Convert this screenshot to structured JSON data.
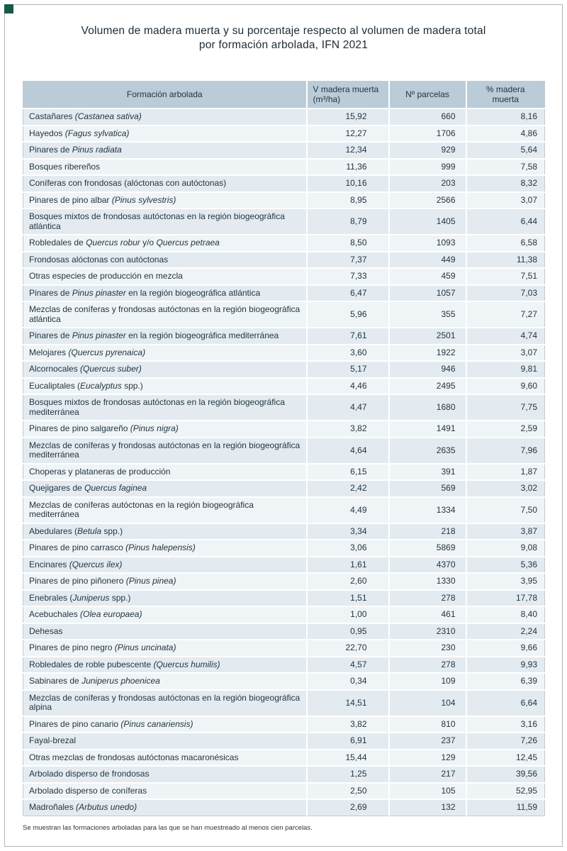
{
  "colors": {
    "header_bg": "#b9ccd8",
    "row_odd": "#e3ebf1",
    "row_even": "#eff4f7",
    "text": "#24343f",
    "title": "#1b2b36",
    "corner": "#17594a",
    "frame": "#b0b5b8"
  },
  "chart_data": {
    "type": "table",
    "title": "Volumen de madera muerta y su porcentaje respecto al volumen de madera total por formación arbolada, IFN 2021",
    "title_lines": [
      "Volumen de madera muerta y su porcentaje respecto al volumen de madera total",
      "por formación arbolada, IFN 2021"
    ],
    "columns": [
      "Formación arbolada",
      "V madera muerta (m³/ha)",
      "Nº parcelas",
      "% madera muerta"
    ],
    "rows": [
      {
        "formacion": [
          [
            "Castañares ",
            0
          ],
          [
            "(Castanea sativa)",
            1
          ]
        ],
        "v_madera_muerta": "15,92",
        "n_parcelas": "660",
        "pct_madera_muerta": "8,16"
      },
      {
        "formacion": [
          [
            "Hayedos ",
            0
          ],
          [
            "(Fagus sylvatica)",
            1
          ]
        ],
        "v_madera_muerta": "12,27",
        "n_parcelas": "1706",
        "pct_madera_muerta": "4,86"
      },
      {
        "formacion": [
          [
            "Pinares de ",
            0
          ],
          [
            "Pinus radiata",
            1
          ]
        ],
        "v_madera_muerta": "12,34",
        "n_parcelas": "929",
        "pct_madera_muerta": "5,64"
      },
      {
        "formacion": [
          [
            "Bosques ribereños",
            0
          ]
        ],
        "v_madera_muerta": "11,36",
        "n_parcelas": "999",
        "pct_madera_muerta": "7,58"
      },
      {
        "formacion": [
          [
            "Coníferas con frondosas (alóctonas con autóctonas)",
            0
          ]
        ],
        "v_madera_muerta": "10,16",
        "n_parcelas": "203",
        "pct_madera_muerta": "8,32"
      },
      {
        "formacion": [
          [
            "Pinares de pino albar ",
            0
          ],
          [
            "(Pinus sylvestris)",
            1
          ]
        ],
        "v_madera_muerta": "8,95",
        "n_parcelas": "2566",
        "pct_madera_muerta": "3,07"
      },
      {
        "formacion": [
          [
            "Bosques mixtos de frondosas autóctonas en la región biogeográfica atlántica",
            0
          ]
        ],
        "v_madera_muerta": "8,79",
        "n_parcelas": "1405",
        "pct_madera_muerta": "6,44"
      },
      {
        "formacion": [
          [
            "Robledales de ",
            0
          ],
          [
            "Quercus robur",
            1
          ],
          [
            " y/o ",
            0
          ],
          [
            "Quercus petraea",
            1
          ]
        ],
        "v_madera_muerta": "8,50",
        "n_parcelas": "1093",
        "pct_madera_muerta": "6,58"
      },
      {
        "formacion": [
          [
            "Frondosas alóctonas con autóctonas",
            0
          ]
        ],
        "v_madera_muerta": "7,37",
        "n_parcelas": "449",
        "pct_madera_muerta": "11,38"
      },
      {
        "formacion": [
          [
            "Otras especies de producción en mezcla",
            0
          ]
        ],
        "v_madera_muerta": "7,33",
        "n_parcelas": "459",
        "pct_madera_muerta": "7,51"
      },
      {
        "formacion": [
          [
            "Pinares de ",
            0
          ],
          [
            "Pinus pinaster",
            1
          ],
          [
            " en la región biogeográfica atlántica",
            0
          ]
        ],
        "v_madera_muerta": "6,47",
        "n_parcelas": "1057",
        "pct_madera_muerta": "7,03"
      },
      {
        "formacion": [
          [
            "Mezclas de coníferas y frondosas autóctonas en la región biogeográfica atlántica",
            0
          ]
        ],
        "v_madera_muerta": "5,96",
        "n_parcelas": "355",
        "pct_madera_muerta": "7,27"
      },
      {
        "formacion": [
          [
            "Pinares de ",
            0
          ],
          [
            "Pinus pinaster",
            1
          ],
          [
            " en la región biogeográfica mediterránea",
            0
          ]
        ],
        "v_madera_muerta": "7,61",
        "n_parcelas": "2501",
        "pct_madera_muerta": "4,74"
      },
      {
        "formacion": [
          [
            "Melojares ",
            0
          ],
          [
            "(Quercus pyrenaica)",
            1
          ]
        ],
        "v_madera_muerta": "3,60",
        "n_parcelas": "1922",
        "pct_madera_muerta": "3,07"
      },
      {
        "formacion": [
          [
            "Alcornocales ",
            0
          ],
          [
            "(Quercus suber)",
            1
          ]
        ],
        "v_madera_muerta": "5,17",
        "n_parcelas": "946",
        "pct_madera_muerta": "9,81"
      },
      {
        "formacion": [
          [
            "Eucaliptales (",
            0
          ],
          [
            "Eucalyptus",
            1
          ],
          [
            " spp.)",
            0
          ]
        ],
        "v_madera_muerta": "4,46",
        "n_parcelas": "2495",
        "pct_madera_muerta": "9,60"
      },
      {
        "formacion": [
          [
            "Bosques mixtos de frondosas autóctonas en la región biogeográfica mediterránea",
            0
          ]
        ],
        "v_madera_muerta": "4,47",
        "n_parcelas": "1680",
        "pct_madera_muerta": "7,75"
      },
      {
        "formacion": [
          [
            "Pinares de pino salgareño ",
            0
          ],
          [
            "(Pinus nigra)",
            1
          ]
        ],
        "v_madera_muerta": "3,82",
        "n_parcelas": "1491",
        "pct_madera_muerta": "2,59"
      },
      {
        "formacion": [
          [
            "Mezclas de coníferas y frondosas autóctonas en la región biogeográfica mediterránea",
            0
          ]
        ],
        "v_madera_muerta": "4,64",
        "n_parcelas": "2635",
        "pct_madera_muerta": "7,96"
      },
      {
        "formacion": [
          [
            "Choperas y plataneras de producción",
            0
          ]
        ],
        "v_madera_muerta": "6,15",
        "n_parcelas": "391",
        "pct_madera_muerta": "1,87"
      },
      {
        "formacion": [
          [
            "Quejigares de ",
            0
          ],
          [
            "Quercus faginea",
            1
          ]
        ],
        "v_madera_muerta": "2,42",
        "n_parcelas": "569",
        "pct_madera_muerta": "3,02"
      },
      {
        "formacion": [
          [
            "Mezclas de coníferas autóctonas en la región biogeográfica mediterránea",
            0
          ]
        ],
        "v_madera_muerta": "4,49",
        "n_parcelas": "1334",
        "pct_madera_muerta": "7,50"
      },
      {
        "formacion": [
          [
            "Abedulares (",
            0
          ],
          [
            "Betula",
            1
          ],
          [
            " spp.)",
            0
          ]
        ],
        "v_madera_muerta": "3,34",
        "n_parcelas": "218",
        "pct_madera_muerta": "3,87"
      },
      {
        "formacion": [
          [
            "Pinares de pino carrasco ",
            0
          ],
          [
            "(Pinus halepensis)",
            1
          ]
        ],
        "v_madera_muerta": "3,06",
        "n_parcelas": "5869",
        "pct_madera_muerta": "9,08"
      },
      {
        "formacion": [
          [
            "Encinares ",
            0
          ],
          [
            "(Quercus ilex)",
            1
          ]
        ],
        "v_madera_muerta": "1,61",
        "n_parcelas": "4370",
        "pct_madera_muerta": "5,36"
      },
      {
        "formacion": [
          [
            "Pinares de pino piñonero ",
            0
          ],
          [
            "(Pinus pinea)",
            1
          ]
        ],
        "v_madera_muerta": "2,60",
        "n_parcelas": "1330",
        "pct_madera_muerta": "3,95"
      },
      {
        "formacion": [
          [
            "Enebrales (",
            0
          ],
          [
            "Juniperus",
            1
          ],
          [
            " spp.)",
            0
          ]
        ],
        "v_madera_muerta": "1,51",
        "n_parcelas": "278",
        "pct_madera_muerta": "17,78"
      },
      {
        "formacion": [
          [
            "Acebuchales ",
            0
          ],
          [
            "(Olea europaea)",
            1
          ]
        ],
        "v_madera_muerta": "1,00",
        "n_parcelas": "461",
        "pct_madera_muerta": "8,40"
      },
      {
        "formacion": [
          [
            "Dehesas",
            0
          ]
        ],
        "v_madera_muerta": "0,95",
        "n_parcelas": "2310",
        "pct_madera_muerta": "2,24"
      },
      {
        "formacion": [
          [
            "Pinares de pino negro ",
            0
          ],
          [
            "(Pinus uncinata)",
            1
          ]
        ],
        "v_madera_muerta": "22,70",
        "n_parcelas": "230",
        "pct_madera_muerta": "9,66"
      },
      {
        "formacion": [
          [
            "Robledales de roble pubescente ",
            0
          ],
          [
            "(Quercus humilis)",
            1
          ]
        ],
        "v_madera_muerta": "4,57",
        "n_parcelas": "278",
        "pct_madera_muerta": "9,93"
      },
      {
        "formacion": [
          [
            "Sabinares de ",
            0
          ],
          [
            "Juniperus phoenicea",
            1
          ]
        ],
        "v_madera_muerta": "0,34",
        "n_parcelas": "109",
        "pct_madera_muerta": "6,39"
      },
      {
        "formacion": [
          [
            "Mezclas de coníferas y frondosas autóctonas en la región biogeográfica alpina",
            0
          ]
        ],
        "v_madera_muerta": "14,51",
        "n_parcelas": "104",
        "pct_madera_muerta": "6,64"
      },
      {
        "formacion": [
          [
            "Pinares de pino canario ",
            0
          ],
          [
            "(Pinus canariensis)",
            1
          ]
        ],
        "v_madera_muerta": "3,82",
        "n_parcelas": "810",
        "pct_madera_muerta": "3,16"
      },
      {
        "formacion": [
          [
            "Fayal-brezal",
            0
          ]
        ],
        "v_madera_muerta": "6,91",
        "n_parcelas": "237",
        "pct_madera_muerta": "7,26"
      },
      {
        "formacion": [
          [
            "Otras mezclas de frondosas autóctonas macaronésicas",
            0
          ]
        ],
        "v_madera_muerta": "15,44",
        "n_parcelas": "129",
        "pct_madera_muerta": "12,45"
      },
      {
        "formacion": [
          [
            "Arbolado disperso de frondosas",
            0
          ]
        ],
        "v_madera_muerta": "1,25",
        "n_parcelas": "217",
        "pct_madera_muerta": "39,56"
      },
      {
        "formacion": [
          [
            "Arbolado disperso de coníferas",
            0
          ]
        ],
        "v_madera_muerta": "2,50",
        "n_parcelas": "105",
        "pct_madera_muerta": "52,95"
      },
      {
        "formacion": [
          [
            "Madroñales ",
            0
          ],
          [
            "(Arbutus unedo)",
            1
          ]
        ],
        "v_madera_muerta": "2,69",
        "n_parcelas": "132",
        "pct_madera_muerta": "11,59"
      }
    ],
    "footnote": "Se muestran las formaciones arboladas para las que se han muestreado al menos cien parcelas."
  }
}
